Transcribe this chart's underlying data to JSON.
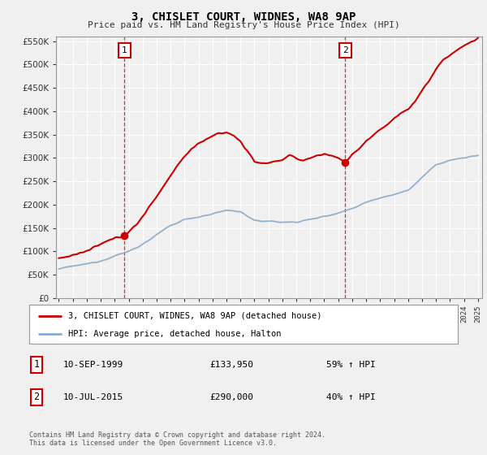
{
  "title": "3, CHISLET COURT, WIDNES, WA8 9AP",
  "subtitle": "Price paid vs. HM Land Registry's House Price Index (HPI)",
  "legend_line1": "3, CHISLET COURT, WIDNES, WA8 9AP (detached house)",
  "legend_line2": "HPI: Average price, detached house, Halton",
  "transaction1_date": "10-SEP-1999",
  "transaction1_price": 133950,
  "transaction1_label": "59% ↑ HPI",
  "transaction2_date": "10-JUL-2015",
  "transaction2_price": 290000,
  "transaction2_label": "40% ↑ HPI",
  "footer": "Contains HM Land Registry data © Crown copyright and database right 2024.\nThis data is licensed under the Open Government Licence v3.0.",
  "red_color": "#cc0000",
  "blue_color": "#88aacc",
  "vline_color": "#cc0000",
  "ylim": [
    0,
    560000
  ],
  "yticks": [
    0,
    50000,
    100000,
    150000,
    200000,
    250000,
    300000,
    350000,
    400000,
    450000,
    500000,
    550000
  ],
  "xlim_start": 1994.8,
  "xlim_end": 2025.3,
  "transaction1_x": 1999.7,
  "transaction2_x": 2015.5,
  "background_color": "#f0f0f0",
  "plot_bg": "#f0f0f0",
  "grid_color": "#ffffff"
}
